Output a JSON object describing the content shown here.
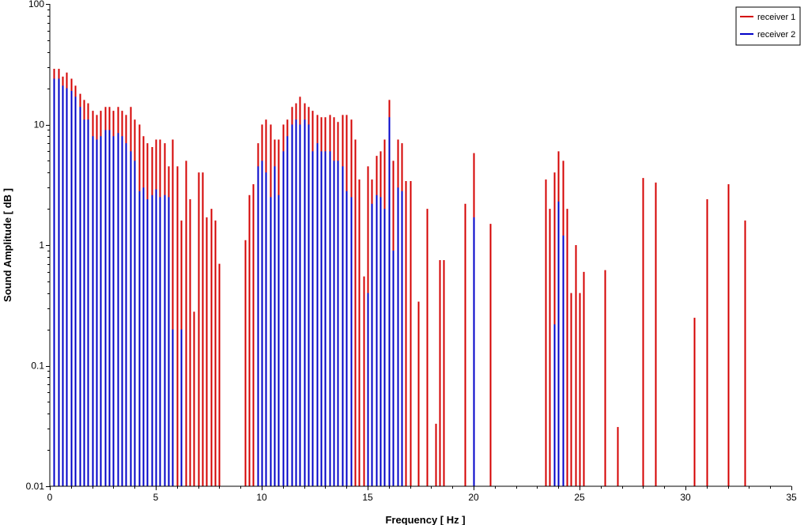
{
  "chart_data": {
    "type": "bar",
    "title": "",
    "xlabel": "Frequency [ Hz ]",
    "ylabel": "Sound Amplitude [ dB ]",
    "xlim": [
      0,
      35
    ],
    "ylim": [
      0.01,
      100
    ],
    "yscale": "log",
    "xticks": [
      "0",
      "5",
      "10",
      "15",
      "20",
      "25",
      "30",
      "35"
    ],
    "yticks": [
      "0.01",
      "0.1",
      "1",
      "10",
      "100"
    ],
    "grid": false,
    "legend_position": "top-right",
    "series": [
      {
        "name": "receiver 1",
        "color": "#d40000",
        "x": [
          0.2,
          0.4,
          0.6,
          0.8,
          1.0,
          1.2,
          1.4,
          1.6,
          1.8,
          2.0,
          2.2,
          2.4,
          2.6,
          2.8,
          3.0,
          3.2,
          3.4,
          3.6,
          3.8,
          4.0,
          4.2,
          4.4,
          4.6,
          4.8,
          5.0,
          5.2,
          5.4,
          5.6,
          5.8,
          6.0,
          6.2,
          6.4,
          6.6,
          6.8,
          7.0,
          7.2,
          7.4,
          7.6,
          7.8,
          8.0,
          9.2,
          9.4,
          9.6,
          9.8,
          10.0,
          10.2,
          10.4,
          10.6,
          10.8,
          11.0,
          11.2,
          11.4,
          11.6,
          11.8,
          12.0,
          12.2,
          12.4,
          12.6,
          12.8,
          13.0,
          13.2,
          13.4,
          13.6,
          13.8,
          14.0,
          14.2,
          14.4,
          14.6,
          14.8,
          15.0,
          15.2,
          15.4,
          15.6,
          15.8,
          16.0,
          16.2,
          16.4,
          16.6,
          16.8,
          17.0,
          17.4,
          17.8,
          18.2,
          18.4,
          18.6,
          19.6,
          20.0,
          20.8,
          23.4,
          23.6,
          23.8,
          24.0,
          24.2,
          24.4,
          24.6,
          24.8,
          25.0,
          25.2,
          26.2,
          26.8,
          28.0,
          28.6,
          30.4,
          31.0,
          32.0,
          32.8
        ],
        "values": [
          29,
          29,
          25,
          27,
          24,
          21,
          18,
          16,
          15,
          13,
          12,
          13,
          14,
          14,
          13,
          14,
          13,
          12,
          14,
          11,
          10,
          8,
          7,
          6.5,
          7.5,
          7.5,
          7,
          4.5,
          7.5,
          4.5,
          1.6,
          5,
          2.4,
          0.28,
          4,
          4,
          1.7,
          2,
          1.6,
          0.7,
          1.1,
          2.6,
          3.2,
          7,
          10,
          11,
          10,
          7.5,
          7.5,
          10,
          11,
          14,
          15,
          17,
          15,
          14,
          13,
          12,
          11.5,
          11.5,
          12,
          11.5,
          10.5,
          12,
          12,
          11,
          7.5,
          3.5,
          0.55,
          4.5,
          3.5,
          5.5,
          6,
          7.5,
          16,
          5,
          7.5,
          7,
          3.4,
          3.4,
          0.34,
          2,
          0.033,
          0.75,
          0.75,
          2.2,
          5.8,
          1.5,
          3.5,
          2,
          4,
          6,
          5,
          2,
          0.4,
          1,
          0.4,
          0.6,
          0.62,
          0.031,
          3.6,
          3.3,
          0.25,
          2.4,
          3.2,
          1.6
        ]
      },
      {
        "name": "receiver 2",
        "color": "#0000c8",
        "x": [
          0.2,
          0.4,
          0.6,
          0.8,
          1.0,
          1.2,
          1.4,
          1.6,
          1.8,
          2.0,
          2.2,
          2.4,
          2.6,
          2.8,
          3.0,
          3.2,
          3.4,
          3.6,
          3.8,
          4.0,
          4.2,
          4.4,
          4.6,
          4.8,
          5.0,
          5.2,
          5.4,
          5.6,
          5.8,
          6.0,
          6.2,
          9.8,
          10.0,
          10.2,
          10.4,
          10.6,
          10.8,
          11.0,
          11.2,
          11.4,
          11.6,
          11.8,
          12.0,
          12.2,
          12.4,
          12.6,
          12.8,
          13.0,
          13.2,
          13.4,
          13.6,
          13.8,
          14.0,
          14.2,
          15.0,
          15.2,
          15.4,
          15.6,
          15.8,
          16.0,
          16.2,
          16.4,
          16.6,
          20.0,
          23.8,
          24.0,
          24.2
        ],
        "values": [
          24,
          24,
          21,
          20,
          19,
          17,
          14,
          11,
          11,
          8,
          7.5,
          8,
          9,
          9,
          8,
          8.5,
          8,
          7,
          6,
          5,
          2.8,
          3,
          2.4,
          2.6,
          2.9,
          2.5,
          2.6,
          2.5,
          0.2,
          0.01,
          0.2,
          4.5,
          5,
          4,
          2.5,
          4.5,
          2.6,
          6,
          8,
          10,
          11,
          10,
          11,
          10,
          6,
          7,
          6,
          6,
          6,
          5,
          5,
          4.5,
          2.8,
          2.5,
          0.4,
          2.2,
          2.6,
          2.5,
          2,
          11.5,
          0.9,
          3,
          2.8,
          1.7,
          0.22,
          2.3,
          1.2
        ]
      }
    ]
  }
}
